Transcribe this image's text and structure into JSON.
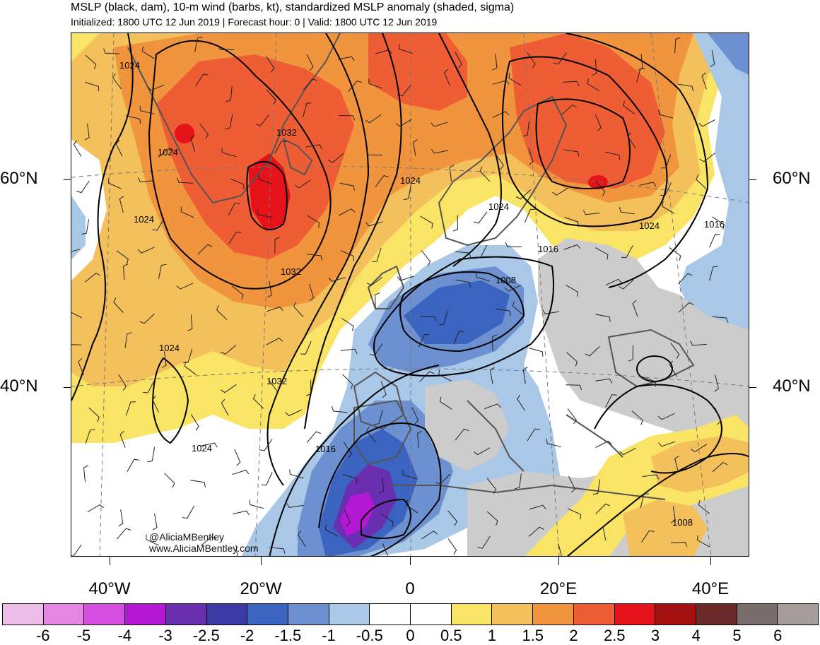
{
  "header": {
    "title": "MSLP (black, dam), 10-m wind (barbs, kt), standardized MSLP anomaly (shaded, sigma)",
    "subtitle": "Initialized: 1800 UTC 12 Jun 2019 | Forecast hour: 0 | Valid: 1800 UTC 12 Jun 2019"
  },
  "map": {
    "lat_labels": [
      "60°N",
      "40°N"
    ],
    "lon_labels": [
      "40°W",
      "20°W",
      "0",
      "20°E",
      "40°E"
    ],
    "contour_labels": [
      "1024",
      "1032",
      "1024",
      "1024",
      "1032",
      "1024",
      "1032",
      "1024",
      "1024",
      "1016",
      "1024",
      "1024",
      "1016",
      "1008",
      "1016",
      "1008"
    ],
    "credit_handle": "@AliciaMBentley",
    "credit_url": "www.AliciaMBentley.com"
  },
  "colorbar": {
    "labels": [
      "-6",
      "-5",
      "-4",
      "-3",
      "-2.5",
      "-2",
      "-1.5",
      "-1",
      "-0.5",
      "0",
      "0.5",
      "1",
      "1.5",
      "2",
      "2.5",
      "3",
      "4",
      "5",
      "6"
    ],
    "colors": [
      "#ecbde8",
      "#e486e2",
      "#d64ee0",
      "#b418d4",
      "#6a2fb0",
      "#3c3aa6",
      "#3a64c0",
      "#6d91d0",
      "#a9c7e6",
      "#ffffff",
      "#ffffff",
      "#f9e465",
      "#f3c05c",
      "#f0943e",
      "#ee5d34",
      "#e6121a",
      "#a5110f",
      "#6e2a2a",
      "#786c6c",
      "#a69c9c"
    ]
  }
}
